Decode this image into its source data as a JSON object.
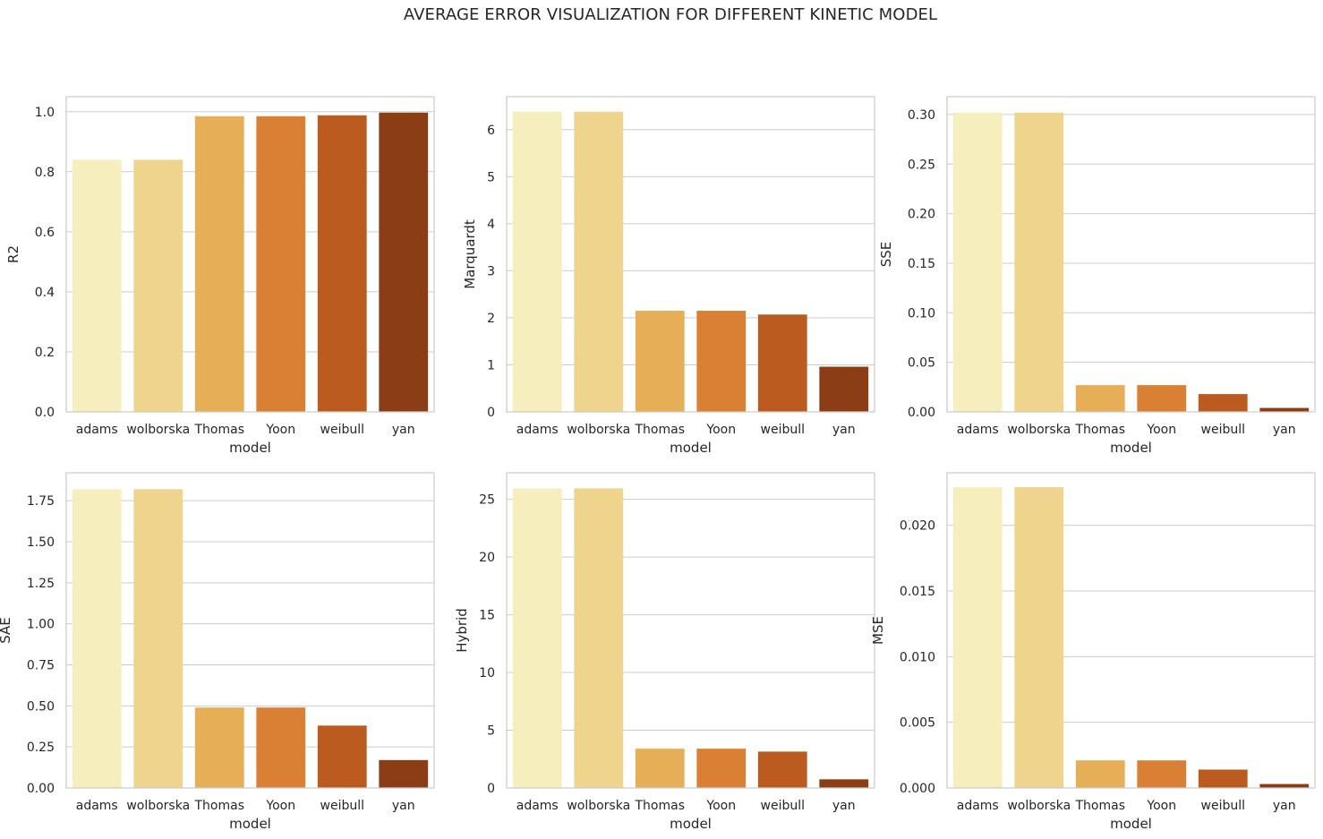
{
  "figure": {
    "suptitle": "AVERAGE ERROR VISUALIZATION FOR DIFFERENT KINETIC MODEL"
  },
  "colors": [
    "#f7eebe",
    "#eed48c",
    "#e5ae57",
    "#d98035",
    "#bc5b1f",
    "#8b3d16"
  ],
  "chart_data": [
    {
      "type": "bar",
      "xlabel": "model",
      "ylabel": "R2",
      "categories": [
        "adams",
        "wolborska",
        "Thomas",
        "Yoon",
        "weibull",
        "yan"
      ],
      "values": [
        0.84,
        0.84,
        0.985,
        0.985,
        0.988,
        0.997
      ],
      "ylim": [
        0,
        1.05
      ],
      "yticks": [
        0.0,
        0.2,
        0.4,
        0.6,
        0.8,
        1.0
      ],
      "ytick_labels": [
        "0.0",
        "0.2",
        "0.4",
        "0.6",
        "0.8",
        "1.0"
      ],
      "grid": true
    },
    {
      "type": "bar",
      "xlabel": "model",
      "ylabel": "Marquardt",
      "categories": [
        "adams",
        "wolborska",
        "Thomas",
        "Yoon",
        "weibull",
        "yan"
      ],
      "values": [
        6.38,
        6.38,
        2.15,
        2.15,
        2.07,
        0.96
      ],
      "ylim": [
        0,
        6.7
      ],
      "yticks": [
        0,
        1,
        2,
        3,
        4,
        5,
        6
      ],
      "ytick_labels": [
        "0",
        "1",
        "2",
        "3",
        "4",
        "5",
        "6"
      ],
      "grid": true
    },
    {
      "type": "bar",
      "xlabel": "model",
      "ylabel": "SSE",
      "categories": [
        "adams",
        "wolborska",
        "Thomas",
        "Yoon",
        "weibull",
        "yan"
      ],
      "values": [
        0.302,
        0.302,
        0.027,
        0.027,
        0.018,
        0.004
      ],
      "ylim": [
        0,
        0.318
      ],
      "yticks": [
        0.0,
        0.05,
        0.1,
        0.15,
        0.2,
        0.25,
        0.3
      ],
      "ytick_labels": [
        "0.00",
        "0.05",
        "0.10",
        "0.15",
        "0.20",
        "0.25",
        "0.30"
      ],
      "grid": true
    },
    {
      "type": "bar",
      "xlabel": "model",
      "ylabel": "SAE",
      "categories": [
        "adams",
        "wolborska",
        "Thomas",
        "Yoon",
        "weibull",
        "yan"
      ],
      "values": [
        1.82,
        1.82,
        0.49,
        0.49,
        0.38,
        0.17
      ],
      "ylim": [
        0,
        1.92
      ],
      "yticks": [
        0.0,
        0.25,
        0.5,
        0.75,
        1.0,
        1.25,
        1.5,
        1.75
      ],
      "ytick_labels": [
        "0.00",
        "0.25",
        "0.50",
        "0.75",
        "1.00",
        "1.25",
        "1.50",
        "1.75"
      ],
      "grid": true
    },
    {
      "type": "bar",
      "xlabel": "model",
      "ylabel": "Hybrid",
      "categories": [
        "adams",
        "wolborska",
        "Thomas",
        "Yoon",
        "weibull",
        "yan"
      ],
      "values": [
        25.95,
        25.95,
        3.4,
        3.4,
        3.15,
        0.75
      ],
      "ylim": [
        0,
        27.3
      ],
      "yticks": [
        0,
        5,
        10,
        15,
        20,
        25
      ],
      "ytick_labels": [
        "0",
        "5",
        "10",
        "15",
        "20",
        "25"
      ],
      "grid": true
    },
    {
      "type": "bar",
      "xlabel": "model",
      "ylabel": "MSE",
      "categories": [
        "adams",
        "wolborska",
        "Thomas",
        "Yoon",
        "weibull",
        "yan"
      ],
      "values": [
        0.0229,
        0.0229,
        0.0021,
        0.0021,
        0.0014,
        0.0003
      ],
      "ylim": [
        0,
        0.024
      ],
      "yticks": [
        0.0,
        0.005,
        0.01,
        0.015,
        0.02
      ],
      "ytick_labels": [
        "0.000",
        "0.005",
        "0.010",
        "0.015",
        "0.020"
      ],
      "grid": true
    }
  ]
}
